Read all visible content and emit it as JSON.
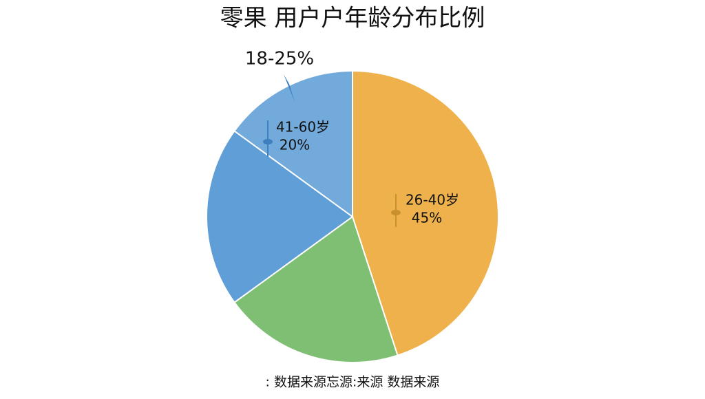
{
  "chart_data": {
    "type": "pie",
    "title": "零果 用户户年龄分布比例",
    "categories": [
      "26-40岁",
      null,
      null,
      null
    ],
    "values": [
      45,
      20,
      20,
      15
    ],
    "value_labels": [
      "45%",
      null,
      null,
      null
    ],
    "colors": [
      "#efb14b",
      "#7fbf74",
      "#5f9ed6",
      "#72aadb"
    ],
    "annotations": [
      "41-60岁",
      "20%",
      "18-25%"
    ],
    "source": ": 数据来源忘源:来源 数据来源"
  }
}
